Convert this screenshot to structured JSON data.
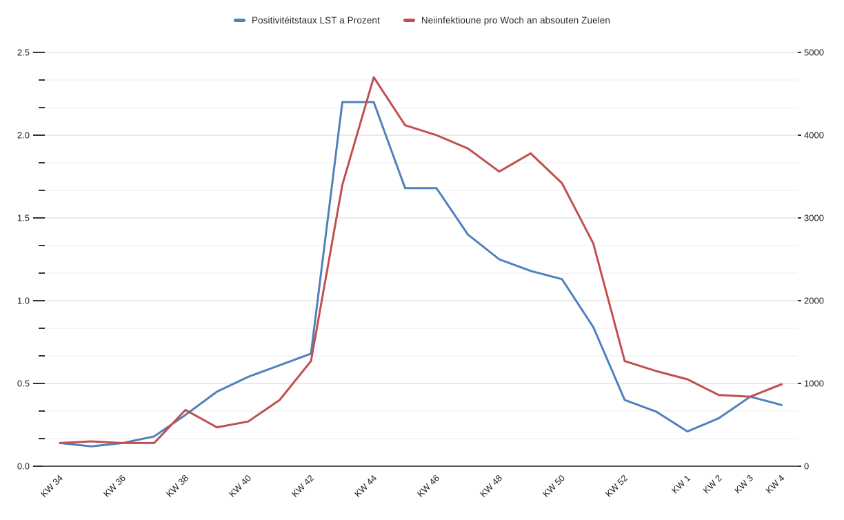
{
  "chart_data": {
    "type": "line",
    "title": "",
    "categories": [
      "KW 34",
      "KW 35",
      "KW 36",
      "KW 37",
      "KW 38",
      "KW 39",
      "KW 40",
      "KW 41",
      "KW 42",
      "KW 43",
      "KW 44",
      "KW 45",
      "KW 46",
      "KW 47",
      "KW 48",
      "KW 49",
      "KW 50",
      "KW 51",
      "KW 52",
      "KW 53",
      "KW 1",
      "KW 2",
      "KW 3",
      "KW 4"
    ],
    "x_axis": {
      "visible_labels": [
        {
          "label": "KW 34",
          "index": 0
        },
        {
          "label": "KW 36",
          "index": 2
        },
        {
          "label": "KW 38",
          "index": 4
        },
        {
          "label": "KW 40",
          "index": 6
        },
        {
          "label": "KW 42",
          "index": 8
        },
        {
          "label": "KW 44",
          "index": 10
        },
        {
          "label": "KW 46",
          "index": 12
        },
        {
          "label": "KW 48",
          "index": 14
        },
        {
          "label": "KW 50",
          "index": 16
        },
        {
          "label": "KW 52",
          "index": 18
        },
        {
          "label": "KW 1",
          "index": 20
        },
        {
          "label": "KW 2",
          "index": 21
        },
        {
          "label": "KW 3",
          "index": 22
        },
        {
          "label": "KW 4",
          "index": 23
        }
      ]
    },
    "series": [
      {
        "name": "Positivitéitstaux LST a Prozent",
        "color": "#4f81bd",
        "axis": "left",
        "values": [
          0.14,
          0.12,
          0.14,
          0.18,
          0.31,
          0.45,
          0.54,
          0.61,
          0.68,
          2.2,
          2.2,
          1.68,
          1.68,
          1.4,
          1.25,
          1.18,
          1.13,
          0.84,
          0.4,
          0.33,
          0.21,
          0.29,
          0.42,
          0.37
        ]
      },
      {
        "name": "Neiinfektioune pro Woch an absouten Zuelen",
        "color": "#c0504d",
        "axis": "right",
        "values": [
          280,
          300,
          280,
          280,
          680,
          470,
          540,
          800,
          1270,
          3400,
          4700,
          4120,
          4000,
          3840,
          3560,
          3780,
          3420,
          2690,
          1270,
          1150,
          1050,
          860,
          840,
          990
        ]
      }
    ],
    "left_axis": {
      "min": 0,
      "max": 2.5,
      "major_step": 0.5,
      "minors_per_major": 2,
      "tick_labels": [
        "0.0",
        "0.5",
        "1.0",
        "1.5",
        "2.0",
        "2.5"
      ]
    },
    "right_axis": {
      "min": 0,
      "max": 5000,
      "major_step": 1000,
      "tick_labels": [
        "0",
        "1000",
        "2000",
        "3000",
        "4000",
        "5000"
      ]
    },
    "legend": {
      "position": "top",
      "items": [
        {
          "label": "Positivitéitstaux LST a Prozent",
          "color": "#4f81bd"
        },
        {
          "label": "Neiinfektioune pro Woch an absouten Zuelen",
          "color": "#c0504d"
        }
      ]
    },
    "style": {
      "major_grid_color": "#d4d4d4",
      "minor_grid_color": "#ebebeb",
      "axis_line_color": "#545454",
      "tick_color": "#333333",
      "label_color": "#1c1c1c",
      "background": "#ffffff",
      "line_width": 3
    }
  }
}
